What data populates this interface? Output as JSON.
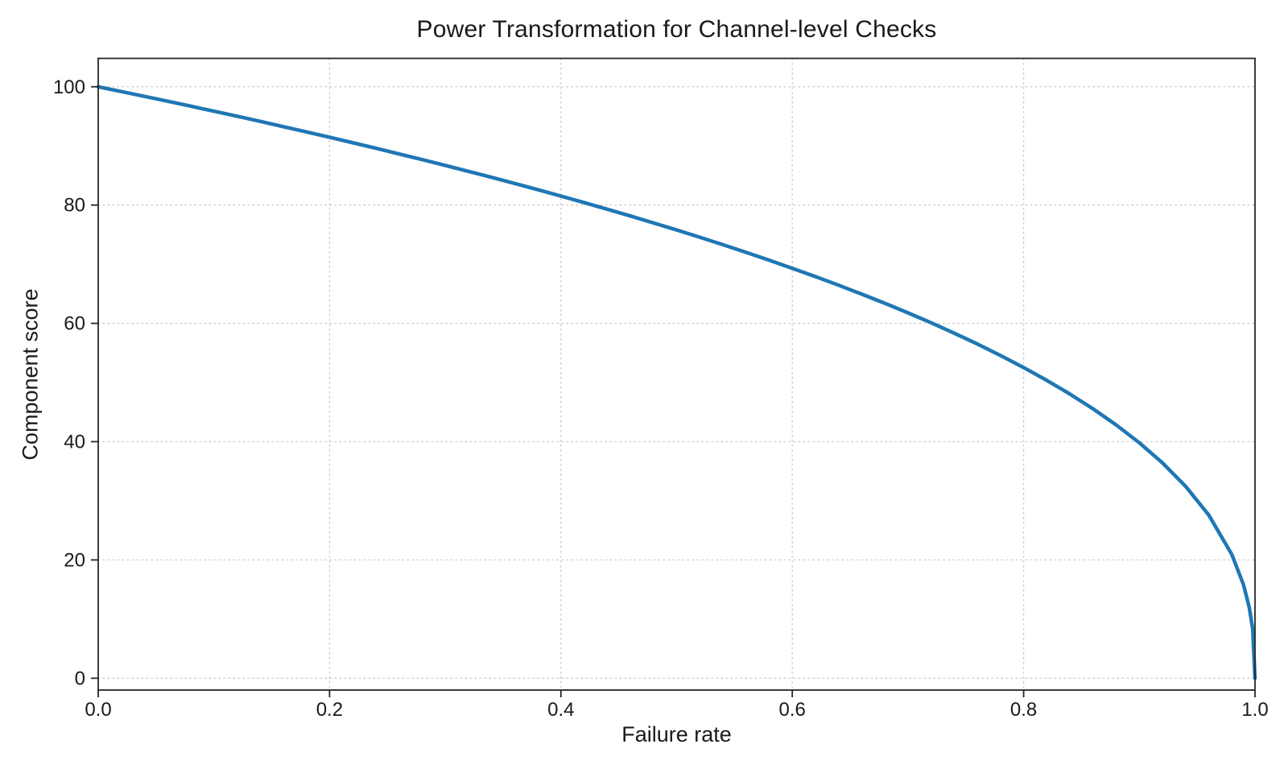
{
  "chart_data": {
    "type": "line",
    "title": "Power Transformation for Channel-level Checks",
    "xlabel": "Failure rate",
    "ylabel": "Component score",
    "xlim": [
      0.0,
      1.0
    ],
    "ylim": [
      -2.0,
      104.8
    ],
    "grid": "dotted",
    "legend": "none",
    "xticks": {
      "values": [
        0.0,
        0.2,
        0.4,
        0.6,
        0.8,
        1.0
      ],
      "labels": [
        "0.0",
        "0.2",
        "0.4",
        "0.6",
        "0.8",
        "1.0"
      ]
    },
    "yticks": {
      "values": [
        0,
        20,
        40,
        60,
        80,
        100
      ],
      "labels": [
        "0",
        "20",
        "40",
        "60",
        "80",
        "100"
      ]
    },
    "colors": {
      "line": "#1f77b4",
      "grid": "#c9c9c9",
      "spine": "#262626",
      "text": "#1a1a1a"
    },
    "line_width": 4.5,
    "series": [
      {
        "name": "Component score vs failure rate",
        "x": [
          0,
          0.02,
          0.04,
          0.06,
          0.08,
          0.1,
          0.12,
          0.14,
          0.16,
          0.18,
          0.2,
          0.22,
          0.24,
          0.26,
          0.28,
          0.3,
          0.32,
          0.34,
          0.36,
          0.38,
          0.4,
          0.42,
          0.44,
          0.46,
          0.48,
          0.5,
          0.52,
          0.54,
          0.56,
          0.58,
          0.6,
          0.62,
          0.64,
          0.66,
          0.68,
          0.7,
          0.72,
          0.74,
          0.76,
          0.78,
          0.8,
          0.82,
          0.84,
          0.86,
          0.88,
          0.9,
          0.92,
          0.94,
          0.96,
          0.98,
          0.99,
          0.995,
          0.998,
          1.0
        ],
        "y": [
          100,
          99.19,
          98.38,
          97.56,
          96.72,
          95.87,
          95.02,
          94.15,
          93.26,
          92.37,
          91.46,
          90.54,
          89.61,
          88.65,
          87.69,
          86.7,
          85.7,
          84.69,
          83.65,
          82.6,
          81.52,
          80.42,
          79.3,
          78.16,
          76.98,
          75.79,
          74.56,
          73.3,
          72.01,
          70.68,
          69.31,
          67.91,
          66.45,
          64.95,
          63.4,
          61.78,
          60.1,
          58.34,
          56.51,
          54.57,
          52.53,
          50.36,
          48.05,
          45.55,
          42.82,
          39.81,
          36.41,
          32.45,
          27.6,
          20.91,
          15.85,
          12.01,
          8.33,
          0
        ]
      }
    ]
  }
}
